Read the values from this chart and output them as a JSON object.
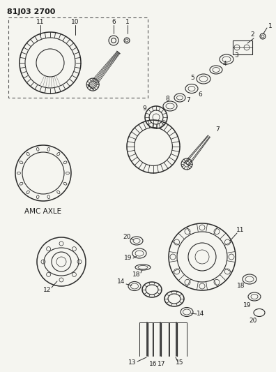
{
  "title": "81J03 2700",
  "background_color": "#f5f5f0",
  "amc_axle_label": "AMC AXLE",
  "figsize": [
    3.96,
    5.33
  ],
  "dpi": 100,
  "text_color": "#1a1a1a",
  "line_color": "#2a2a2a"
}
